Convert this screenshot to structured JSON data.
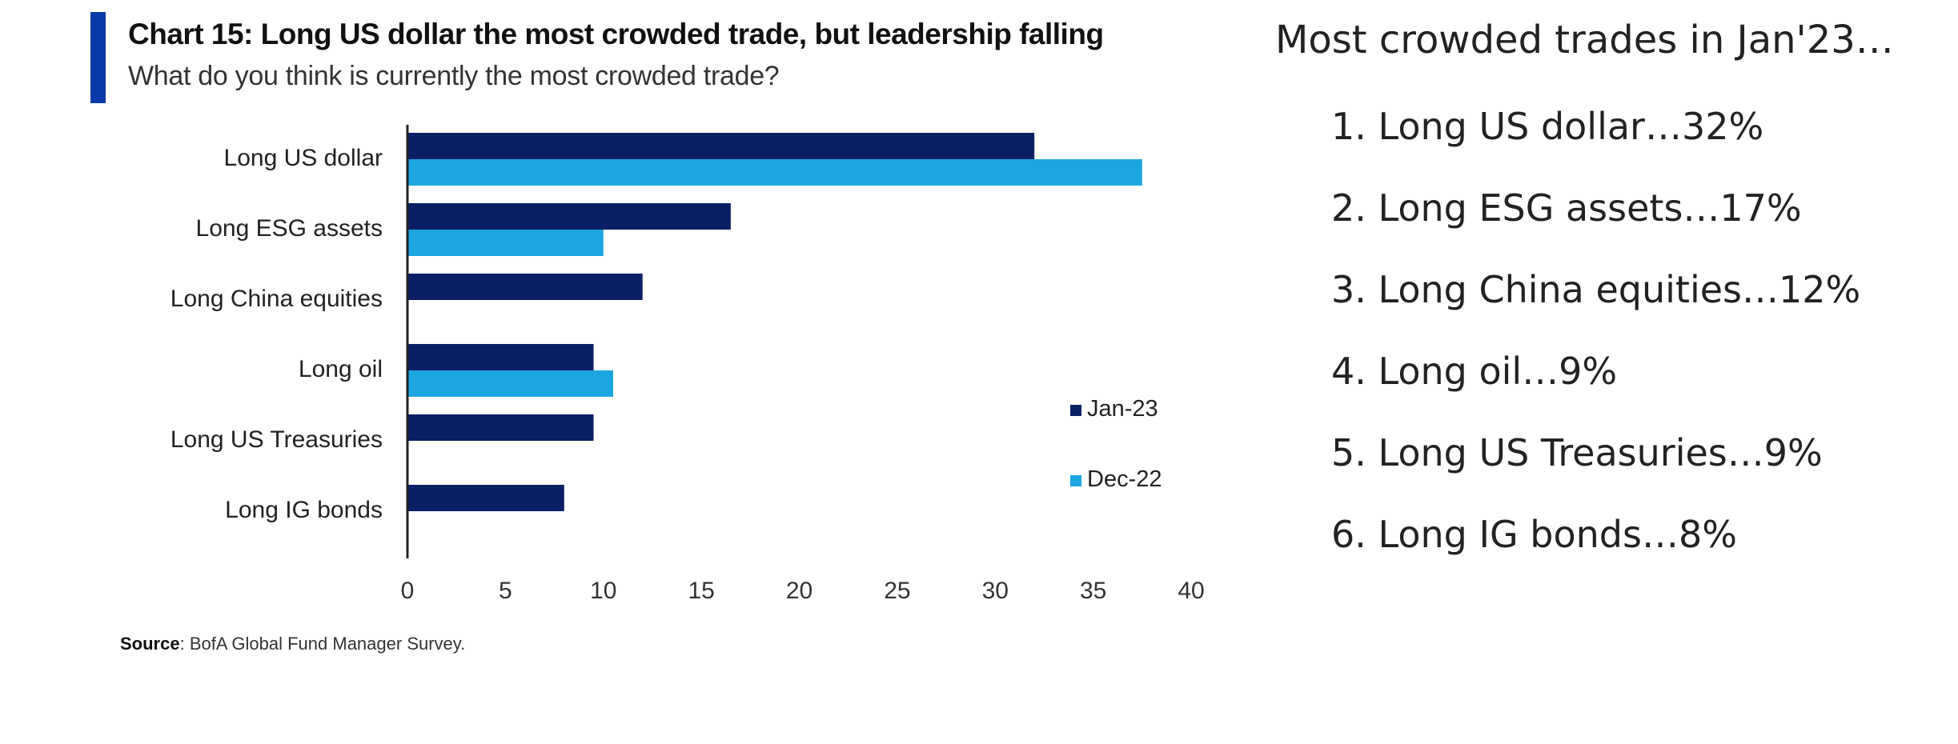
{
  "chart_title": "Chart 15: Long US dollar the most crowded trade, but leadership falling",
  "chart_subtitle": "What do you think is currently the most crowded trade?",
  "source_label": "Source",
  "source_text": ": BofA Global Fund Manager Survey.",
  "colors": {
    "accent": "#0a3aa8",
    "jan23": "#0b1f66",
    "dec22": "#1ba6e2"
  },
  "chart_data": {
    "type": "bar",
    "orientation": "horizontal",
    "title": "Chart 15: Long US dollar the most crowded trade, but leadership falling",
    "subtitle": "What do you think is currently the most crowded trade?",
    "categories": [
      "Long US dollar",
      "Long ESG assets",
      "Long China equities",
      "Long oil",
      "Long US Treasuries",
      "Long IG bonds"
    ],
    "series": [
      {
        "name": "Jan-23",
        "values": [
          32,
          16.5,
          12,
          9.5,
          9.5,
          8
        ]
      },
      {
        "name": "Dec-22",
        "values": [
          37.5,
          10,
          null,
          10.5,
          null,
          null
        ]
      }
    ],
    "xlim": [
      0,
      40
    ],
    "xticks": [
      "0",
      "5",
      "10",
      "15",
      "20",
      "25",
      "30",
      "35",
      "40"
    ],
    "legend_position": "right",
    "grid": false
  },
  "summary": {
    "title": "Most crowded trades in Jan'23…",
    "items": [
      "1. Long US dollar…32%",
      "2. Long ESG assets…17%",
      "3. Long China equities…12%",
      "4. Long oil…9%",
      "5. Long US Treasuries…9%",
      "6. Long IG bonds…8%"
    ]
  }
}
